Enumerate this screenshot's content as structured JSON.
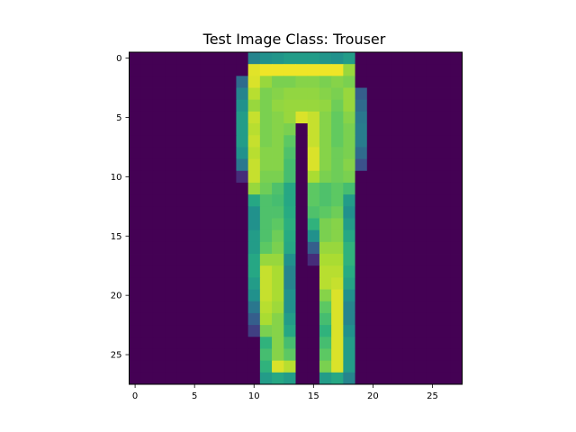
{
  "figure": {
    "title": "Test Image Class: Trouser"
  },
  "chart_data": {
    "type": "heatmap",
    "title": "Test Image Class: Trouser",
    "colormap": "viridis",
    "rows": 28,
    "cols": 28,
    "x_ticks": [
      0,
      5,
      10,
      15,
      20,
      25
    ],
    "y_ticks": [
      0,
      5,
      10,
      15,
      20,
      25
    ],
    "value_range": [
      0,
      1
    ],
    "grid": false,
    "values": [
      [
        0,
        0,
        0,
        0,
        0,
        0,
        0,
        0,
        0,
        0,
        0.45,
        0.5,
        0.52,
        0.55,
        0.55,
        0.55,
        0.52,
        0.5,
        0.55,
        0,
        0,
        0,
        0,
        0,
        0,
        0,
        0,
        0
      ],
      [
        0,
        0,
        0,
        0,
        0,
        0,
        0,
        0,
        0,
        0,
        0.96,
        0.98,
        0.98,
        0.98,
        0.98,
        0.98,
        0.98,
        0.98,
        0.85,
        0,
        0,
        0,
        0,
        0,
        0,
        0,
        0,
        0
      ],
      [
        0,
        0,
        0,
        0,
        0,
        0,
        0,
        0,
        0,
        0.35,
        0.95,
        0.85,
        0.8,
        0.8,
        0.82,
        0.82,
        0.8,
        0.82,
        0.8,
        0,
        0,
        0,
        0,
        0,
        0,
        0,
        0,
        0
      ],
      [
        0,
        0,
        0,
        0,
        0,
        0,
        0,
        0,
        0,
        0.45,
        0.9,
        0.8,
        0.82,
        0.84,
        0.84,
        0.84,
        0.82,
        0.8,
        0.85,
        0.3,
        0,
        0,
        0,
        0,
        0,
        0,
        0,
        0
      ],
      [
        0,
        0,
        0,
        0,
        0,
        0,
        0,
        0,
        0,
        0.5,
        0.85,
        0.8,
        0.84,
        0.85,
        0.85,
        0.85,
        0.84,
        0.78,
        0.85,
        0.35,
        0,
        0,
        0,
        0,
        0,
        0,
        0,
        0
      ],
      [
        0,
        0,
        0,
        0,
        0,
        0,
        0,
        0,
        0,
        0.55,
        0.92,
        0.8,
        0.82,
        0.85,
        0.95,
        0.92,
        0.82,
        0.76,
        0.82,
        0.4,
        0,
        0,
        0,
        0,
        0,
        0,
        0,
        0
      ],
      [
        0,
        0,
        0,
        0,
        0,
        0,
        0,
        0,
        0,
        0.55,
        0.9,
        0.8,
        0.82,
        0.8,
        0,
        0.92,
        0.82,
        0.76,
        0.8,
        0.42,
        0,
        0,
        0,
        0,
        0,
        0,
        0,
        0
      ],
      [
        0,
        0,
        0,
        0,
        0,
        0,
        0,
        0,
        0,
        0.55,
        0.92,
        0.8,
        0.82,
        0.75,
        0,
        0.92,
        0.82,
        0.76,
        0.8,
        0.42,
        0,
        0,
        0,
        0,
        0,
        0,
        0,
        0
      ],
      [
        0,
        0,
        0,
        0,
        0,
        0,
        0,
        0,
        0,
        0.5,
        0.9,
        0.82,
        0.82,
        0.72,
        0,
        0.95,
        0.82,
        0.78,
        0.8,
        0.35,
        0,
        0,
        0,
        0,
        0,
        0,
        0,
        0
      ],
      [
        0,
        0,
        0,
        0,
        0,
        0,
        0,
        0,
        0,
        0.4,
        0.92,
        0.82,
        0.82,
        0.7,
        0,
        0.95,
        0.82,
        0.78,
        0.82,
        0.25,
        0,
        0,
        0,
        0,
        0,
        0,
        0,
        0
      ],
      [
        0,
        0,
        0,
        0,
        0,
        0,
        0,
        0,
        0,
        0.15,
        0.92,
        0.8,
        0.8,
        0.7,
        0,
        0.88,
        0.8,
        0.78,
        0.8,
        0,
        0,
        0,
        0,
        0,
        0,
        0,
        0,
        0
      ],
      [
        0,
        0,
        0,
        0,
        0,
        0,
        0,
        0,
        0,
        0,
        0.85,
        0.78,
        0.72,
        0.6,
        0,
        0.75,
        0.72,
        0.75,
        0.7,
        0,
        0,
        0,
        0,
        0,
        0,
        0,
        0,
        0
      ],
      [
        0,
        0,
        0,
        0,
        0,
        0,
        0,
        0,
        0,
        0,
        0.6,
        0.72,
        0.7,
        0.6,
        0,
        0.75,
        0.72,
        0.75,
        0.55,
        0,
        0,
        0,
        0,
        0,
        0,
        0,
        0,
        0
      ],
      [
        0,
        0,
        0,
        0,
        0,
        0,
        0,
        0,
        0,
        0,
        0.5,
        0.72,
        0.72,
        0.62,
        0,
        0.72,
        0.75,
        0.78,
        0.5,
        0,
        0,
        0,
        0,
        0,
        0,
        0,
        0,
        0
      ],
      [
        0,
        0,
        0,
        0,
        0,
        0,
        0,
        0,
        0,
        0,
        0.5,
        0.72,
        0.75,
        0.64,
        0,
        0.65,
        0.8,
        0.82,
        0.55,
        0,
        0,
        0,
        0,
        0,
        0,
        0,
        0,
        0
      ],
      [
        0,
        0,
        0,
        0,
        0,
        0,
        0,
        0,
        0,
        0,
        0.55,
        0.72,
        0.78,
        0.62,
        0,
        0.5,
        0.8,
        0.82,
        0.6,
        0,
        0,
        0,
        0,
        0,
        0,
        0,
        0,
        0
      ],
      [
        0,
        0,
        0,
        0,
        0,
        0,
        0,
        0,
        0,
        0,
        0.55,
        0.75,
        0.8,
        0.6,
        0,
        0.3,
        0.85,
        0.85,
        0.65,
        0,
        0,
        0,
        0,
        0,
        0,
        0,
        0,
        0
      ],
      [
        0,
        0,
        0,
        0,
        0,
        0,
        0,
        0,
        0,
        0,
        0.6,
        0.85,
        0.85,
        0.5,
        0,
        0.15,
        0.88,
        0.88,
        0.65,
        0,
        0,
        0,
        0,
        0,
        0,
        0,
        0,
        0
      ],
      [
        0,
        0,
        0,
        0,
        0,
        0,
        0,
        0,
        0,
        0,
        0.6,
        0.92,
        0.88,
        0.45,
        0,
        0,
        0.9,
        0.9,
        0.62,
        0,
        0,
        0,
        0,
        0,
        0,
        0,
        0,
        0
      ],
      [
        0,
        0,
        0,
        0,
        0,
        0,
        0,
        0,
        0,
        0,
        0.55,
        0.92,
        0.88,
        0.45,
        0,
        0,
        0.9,
        0.92,
        0.58,
        0,
        0,
        0,
        0,
        0,
        0,
        0,
        0,
        0
      ],
      [
        0,
        0,
        0,
        0,
        0,
        0,
        0,
        0,
        0,
        0,
        0.5,
        0.92,
        0.88,
        0.5,
        0,
        0,
        0.82,
        0.95,
        0.5,
        0,
        0,
        0,
        0,
        0,
        0,
        0,
        0,
        0
      ],
      [
        0,
        0,
        0,
        0,
        0,
        0,
        0,
        0,
        0,
        0,
        0.4,
        0.9,
        0.86,
        0.5,
        0,
        0,
        0.75,
        0.95,
        0.45,
        0,
        0,
        0,
        0,
        0,
        0,
        0,
        0,
        0
      ],
      [
        0,
        0,
        0,
        0,
        0,
        0,
        0,
        0,
        0,
        0,
        0.3,
        0.88,
        0.82,
        0.55,
        0,
        0,
        0.7,
        0.95,
        0.45,
        0,
        0,
        0,
        0,
        0,
        0,
        0,
        0,
        0
      ],
      [
        0,
        0,
        0,
        0,
        0,
        0,
        0,
        0,
        0,
        0,
        0.2,
        0.8,
        0.82,
        0.6,
        0,
        0,
        0.65,
        0.95,
        0.5,
        0,
        0,
        0,
        0,
        0,
        0,
        0,
        0,
        0
      ],
      [
        0,
        0,
        0,
        0,
        0,
        0,
        0,
        0,
        0,
        0,
        0,
        0.65,
        0.82,
        0.7,
        0,
        0,
        0.7,
        0.95,
        0.55,
        0,
        0,
        0,
        0,
        0,
        0,
        0,
        0,
        0
      ],
      [
        0,
        0,
        0,
        0,
        0,
        0,
        0,
        0,
        0,
        0,
        0,
        0.7,
        0.82,
        0.75,
        0,
        0,
        0.75,
        0.95,
        0.55,
        0,
        0,
        0,
        0,
        0,
        0,
        0,
        0,
        0
      ],
      [
        0,
        0,
        0,
        0,
        0,
        0,
        0,
        0,
        0,
        0,
        0,
        0.65,
        0.95,
        0.9,
        0,
        0,
        0.8,
        0.95,
        0.55,
        0,
        0,
        0,
        0,
        0,
        0,
        0,
        0,
        0
      ],
      [
        0,
        0,
        0,
        0,
        0,
        0,
        0,
        0,
        0,
        0,
        0,
        0.55,
        0.6,
        0.55,
        0,
        0,
        0.55,
        0.6,
        0.45,
        0,
        0,
        0,
        0,
        0,
        0,
        0,
        0,
        0
      ]
    ]
  }
}
